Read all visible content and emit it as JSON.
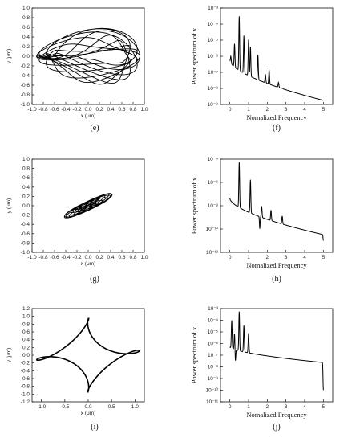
{
  "chart_data": [
    {
      "id": "e",
      "label": "(e)",
      "type": "scatter",
      "subtype": "phase-portrait",
      "xlabel": "x (μm)",
      "ylabel": "y (μm)",
      "xlim": [
        -1.0,
        1.0
      ],
      "ylim": [
        -1.0,
        1.0
      ],
      "xticks": [
        "-1.0",
        "-0.8",
        "-0.6",
        "-0.4",
        "-0.2",
        "0.0",
        "0.2",
        "0.4",
        "0.6",
        "0.8",
        "1.0"
      ],
      "yticks": [
        "-1.0",
        "-0.8",
        "-0.6",
        "-0.4",
        "-0.2",
        "0.0",
        "0.2",
        "0.4",
        "0.6",
        "0.8",
        "1.0"
      ],
      "curve": {
        "x_amp": 0.8,
        "y_amp": 0.55,
        "x_amp2": 0.12,
        "y_amp2": 0.35,
        "ratio": 1.3,
        "cycles": 30
      }
    },
    {
      "id": "f",
      "label": "(f)",
      "type": "line",
      "xlabel": "Nomalized Frequency",
      "ylabel": "Power spectrum of x",
      "xlim": [
        -0.5,
        5.5
      ],
      "ylim": [
        -9,
        -2
      ],
      "yscale": "log",
      "xticks": [
        "0",
        "1",
        "2",
        "3",
        "4",
        "5"
      ],
      "yticks": [
        "10⁻⁹",
        "10⁻⁸",
        "10⁻⁷",
        "10⁻⁶",
        "10⁻⁵",
        "10⁻⁴",
        "10⁻³"
      ],
      "baseline": {
        "start": -5.8,
        "end": -8.7
      },
      "peaks": [
        {
          "x": 0.05,
          "y": -5.5
        },
        {
          "x": 0.25,
          "y": -4.6
        },
        {
          "x": 0.5,
          "y": -2.6
        },
        {
          "x": 0.75,
          "y": -4.0
        },
        {
          "x": 1.0,
          "y": -4.3
        },
        {
          "x": 1.1,
          "y": -4.8
        },
        {
          "x": 1.5,
          "y": -5.4
        },
        {
          "x": 1.9,
          "y": -6.8
        },
        {
          "x": 2.1,
          "y": -6.5
        },
        {
          "x": 2.6,
          "y": -7.4
        },
        {
          "x": 2.8,
          "y": -7.8
        }
      ]
    },
    {
      "id": "g",
      "label": "(g)",
      "type": "scatter",
      "subtype": "phase-portrait",
      "xlabel": "x (μm)",
      "ylabel": "y (μm)",
      "xlim": [
        -1.0,
        1.0
      ],
      "ylim": [
        -1.0,
        1.0
      ],
      "xticks": [
        "-1.0",
        "-0.8",
        "-0.6",
        "-0.4",
        "-0.2",
        "0.0",
        "0.2",
        "0.4",
        "0.6",
        "0.8",
        "1.0"
      ],
      "yticks": [
        "-1.0",
        "-0.8",
        "-0.6",
        "-0.4",
        "-0.2",
        "0.0",
        "0.2",
        "0.4",
        "0.6",
        "0.8",
        "1.0"
      ],
      "curve": {
        "x_amp": 0.25,
        "y_amp": 0.27,
        "x_amp2": 0.13,
        "y_amp2": 0.15,
        "ratio": 1.1,
        "cycles": 25,
        "phase": 0.35
      }
    },
    {
      "id": "h",
      "label": "(h)",
      "type": "line",
      "xlabel": "Nomalized Frequency",
      "ylabel": "Power spectrum of x",
      "xlim": [
        -0.5,
        5.5
      ],
      "ylim": [
        -12,
        -2.5
      ],
      "yscale": "log",
      "xticks": [
        "0",
        "1",
        "2",
        "3",
        "4",
        "5"
      ],
      "yticks": [
        "10⁻¹²",
        "10⁻¹⁰",
        "10⁻⁸",
        "10⁻⁶",
        "10⁻⁴"
      ],
      "baseline": {
        "start": -6.5,
        "end": -10.2
      },
      "peaks": [
        {
          "x": 0.5,
          "y": -2.8
        },
        {
          "x": 1.1,
          "y": -4.6
        },
        {
          "x": 1.6,
          "y": -9.6,
          "dip": true
        },
        {
          "x": 1.7,
          "y": -7.3
        },
        {
          "x": 2.2,
          "y": -7.7
        },
        {
          "x": 2.8,
          "y": -8.3
        },
        {
          "x": 5.0,
          "y": -10.8,
          "dip": true
        }
      ]
    },
    {
      "id": "i",
      "label": "(i)",
      "type": "scatter",
      "subtype": "phase-portrait",
      "xlabel": "x (μm)",
      "ylabel": "y (μm)",
      "xlim": [
        -1.2,
        1.2
      ],
      "ylim": [
        1.2,
        -1.2
      ],
      "xticks": [
        "-1.0",
        "-0.5",
        "0.0",
        "0.5",
        "1.0"
      ],
      "yticks": [
        "-1.2",
        "-1.0",
        "-0.8",
        "-0.6",
        "-0.4",
        "-0.2",
        "0.0",
        "0.2",
        "0.4",
        "0.6",
        "0.8",
        "1.0",
        "1.2"
      ],
      "curve": {
        "x_amp": 0.8,
        "y_amp": 0.65,
        "x_amp2": 0.3,
        "y_amp2": 0.3,
        "ratio": 3,
        "cycles": 1
      }
    },
    {
      "id": "j",
      "label": "(j)",
      "type": "line",
      "xlabel": "Nomalized Frequency",
      "ylabel": "Power spectrum of x",
      "xlim": [
        -0.5,
        5.5
      ],
      "ylim": [
        -12,
        -2.5
      ],
      "yscale": "log",
      "xticks": [
        "0",
        "1",
        "2",
        "3",
        "4",
        "5"
      ],
      "yticks": [
        "10⁻¹¹",
        "10⁻¹⁰",
        "10⁻⁹",
        "10⁻⁸",
        "10⁻⁷",
        "10⁻⁶",
        "10⁻⁵",
        "10⁻⁴",
        "10⁻³"
      ],
      "baseline": {
        "start": -6.4,
        "end": -8.0
      },
      "peaks": [
        {
          "x": 0.1,
          "y": -3.7
        },
        {
          "x": 0.25,
          "y": -5.0
        },
        {
          "x": 0.3,
          "y": -7.8,
          "dip": true
        },
        {
          "x": 0.5,
          "y": -2.8
        },
        {
          "x": 0.75,
          "y": -4.2
        },
        {
          "x": 1.0,
          "y": -5.0
        },
        {
          "x": 5.0,
          "y": -10.8,
          "dip": true
        }
      ]
    }
  ]
}
